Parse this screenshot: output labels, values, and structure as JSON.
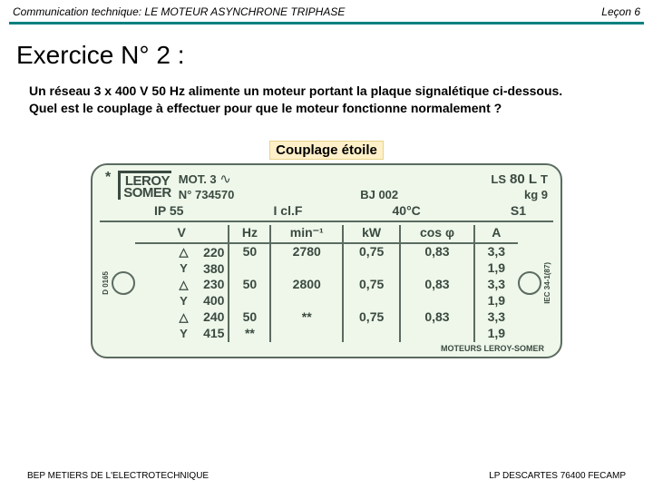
{
  "header": {
    "left": "Communication technique: LE MOTEUR ASYNCHRONE TRIPHASE",
    "right": "Leçon 6"
  },
  "title": "Exercice N° 2 :",
  "question_line1": "Un réseau 3 x 400 V 50 Hz alimente un moteur portant la plaque signalétique ci-dessous.",
  "question_line2": "Quel est le couplage à effectuer pour que le moteur fonctionne normalement ?",
  "answer": "Couplage étoile",
  "plate": {
    "logo_top": "LEROY",
    "logo_bottom": "SOMER",
    "mot_label": "MOT. 3",
    "model_prefix": "LS",
    "model_mid": "80 L",
    "model_suffix": "T",
    "serial_label": "N°",
    "serial": "734570",
    "bj_label": "BJ",
    "bj": "002",
    "kg_label": "kg",
    "kg": "9",
    "ip": "IP 55",
    "icl": "I cl.F",
    "temp": "40°C",
    "duty": "S1",
    "side_left": "D 0165",
    "side_right": "IEC 34-1(87)",
    "columns": [
      "V",
      "Hz",
      "min⁻¹",
      "kW",
      "cos φ",
      "A"
    ],
    "rows": [
      {
        "cfg": "△",
        "v": "220",
        "hz": "50",
        "rpm": "2780",
        "kw": "0,75",
        "cos": "0,83",
        "a": "3,3"
      },
      {
        "cfg": "Y",
        "v": "380",
        "hz": "",
        "rpm": "",
        "kw": "",
        "cos": "",
        "a": "1,9"
      },
      {
        "cfg": "△",
        "v": "230",
        "hz": "50",
        "rpm": "2800",
        "kw": "0,75",
        "cos": "0,83",
        "a": "3,3"
      },
      {
        "cfg": "Y",
        "v": "400",
        "hz": "",
        "rpm": "",
        "kw": "",
        "cos": "",
        "a": "1,9"
      },
      {
        "cfg": "△",
        "v": "240",
        "hz": "50",
        "rpm": "**",
        "kw": "0,75",
        "cos": "0,83",
        "a": "3,3"
      },
      {
        "cfg": "Y",
        "v": "415",
        "hz": "**",
        "rpm": "",
        "kw": "",
        "cos": "",
        "a": "1,9"
      }
    ],
    "foot": "MOTEURS LEROY-SOMER"
  },
  "footer": {
    "left": "BEP METIERS DE L'ELECTROTECHNIQUE",
    "right": "LP DESCARTES 76400 FECAMP"
  },
  "colors": {
    "accent": "#008080",
    "plate_bg": "#eef7ea",
    "plate_border": "#5b6b60",
    "answer_bg": "#fff0c9"
  }
}
